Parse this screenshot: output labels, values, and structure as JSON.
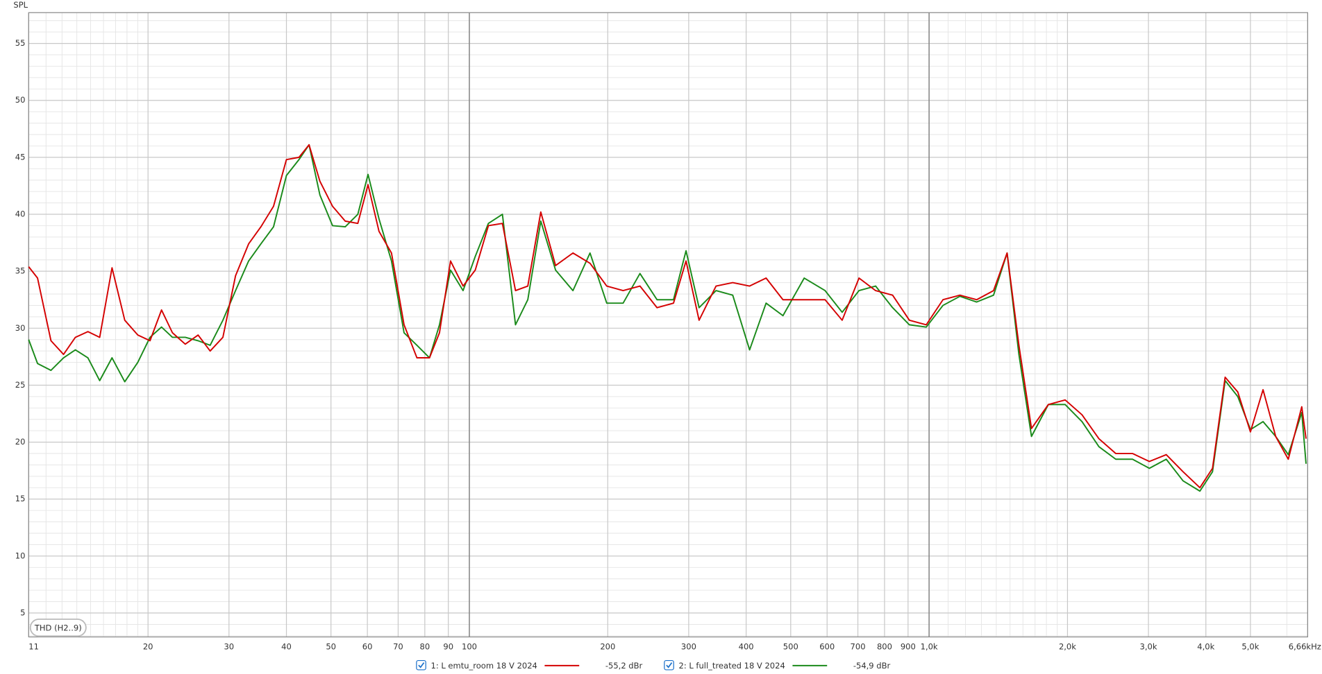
{
  "chart_data": {
    "type": "line",
    "y_label": "SPL",
    "button": "THD (H2..9)",
    "log_x": true,
    "grid": true,
    "xlim": [
      11,
      6660
    ],
    "ylim": [
      2.9,
      57.7
    ],
    "xticks": [
      11,
      20,
      30,
      40,
      50,
      60,
      70,
      80,
      90,
      100,
      200,
      300,
      400,
      500,
      600,
      700,
      800,
      900,
      {
        "value": 1000,
        "label": "1,0k"
      },
      {
        "value": 2000,
        "label": "2,0k"
      },
      {
        "value": 3000,
        "label": "3,0k"
      },
      {
        "value": 4000,
        "label": "4,0k"
      },
      {
        "value": 5000,
        "label": "5,0k"
      },
      {
        "value": 6660,
        "label": "6,66kHz"
      }
    ],
    "xticks_minor": [
      12,
      13,
      14,
      15,
      16,
      17,
      18,
      19,
      1100,
      1200,
      1300,
      1400,
      1500,
      1600,
      1700,
      1800,
      1900,
      6000
    ],
    "yticks": [
      5,
      10,
      15,
      20,
      25,
      30,
      35,
      40,
      45,
      50,
      55
    ],
    "yticks_minor": [
      3,
      4,
      6,
      7,
      8,
      9,
      11,
      12,
      13,
      14,
      16,
      17,
      18,
      19,
      21,
      22,
      23,
      24,
      26,
      27,
      28,
      29,
      31,
      32,
      33,
      34,
      36,
      37,
      38,
      39,
      41,
      42,
      43,
      44,
      46,
      47,
      48,
      49,
      51,
      52,
      53,
      54,
      56,
      57
    ],
    "x": [
      11,
      11.5,
      12.3,
      13.1,
      13.9,
      14.8,
      15.7,
      16.7,
      17.8,
      19.0,
      20.2,
      21.4,
      22.6,
      24.1,
      25.7,
      27.3,
      29.1,
      31.0,
      33.1,
      35.2,
      37.5,
      40.0,
      42.6,
      44.8,
      47.3,
      50.4,
      53.7,
      57.2,
      60.2,
      63.6,
      67.7,
      72.1,
      76.9,
      81.9,
      86.1,
      91.0,
      96.9,
      103,
      110,
      118,
      126,
      134,
      143,
      154,
      168,
      183,
      199,
      216,
      235,
      256,
      278,
      296,
      316,
      344,
      374,
      407,
      442,
      481,
      535,
      594,
      647,
      704,
      765,
      833,
      906,
      986,
      1072,
      1167,
      1269,
      1381,
      1478,
      1568,
      1670,
      1817,
      1977,
      2151,
      2341,
      2547,
      2770,
      3014,
      3280,
      3568,
      3882,
      4135,
      4405,
      4693,
      5000,
      5326,
      5674,
      6044,
      6466,
      6606
    ],
    "series": [
      {
        "name": "1: L emtu_room 18 V 2024",
        "offset": "-55,2 dBr",
        "color": "#d40000",
        "values": [
          35.4,
          34.4,
          28.9,
          27.7,
          29.2,
          29.7,
          29.2,
          35.3,
          30.7,
          29.4,
          28.9,
          31.6,
          29.6,
          28.6,
          29.4,
          28.0,
          29.2,
          34.6,
          37.4,
          38.9,
          40.7,
          44.8,
          45.0,
          46.1,
          42.9,
          40.7,
          39.4,
          39.2,
          42.6,
          38.5,
          36.6,
          30.3,
          27.4,
          27.4,
          29.6,
          35.9,
          33.7,
          35.1,
          39.0,
          39.2,
          33.3,
          33.7,
          40.2,
          35.5,
          36.6,
          35.7,
          33.7,
          33.3,
          33.7,
          31.8,
          32.2,
          35.9,
          30.7,
          33.7,
          34.0,
          33.7,
          34.4,
          32.5,
          32.5,
          32.5,
          30.7,
          34.4,
          33.3,
          32.9,
          30.7,
          30.3,
          32.5,
          32.9,
          32.5,
          33.3,
          36.6,
          28.5,
          21.2,
          23.3,
          23.7,
          22.4,
          20.3,
          19.0,
          19.0,
          18.3,
          18.9,
          17.4,
          16.0,
          17.7,
          25.7,
          24.4,
          20.9,
          24.6,
          20.5,
          18.5,
          23.1,
          20.3
        ]
      },
      {
        "name": "2: L full_treated 18 V 2024",
        "offset": "-54,9 dBr",
        "color": "#1a8a1a",
        "values": [
          29.0,
          26.9,
          26.3,
          27.4,
          28.1,
          27.4,
          25.4,
          27.4,
          25.3,
          27.0,
          29.2,
          30.1,
          29.2,
          29.2,
          28.9,
          28.5,
          30.7,
          33.3,
          35.9,
          37.4,
          38.9,
          43.4,
          44.8,
          46.1,
          41.7,
          39.0,
          38.9,
          40.0,
          43.5,
          39.6,
          35.9,
          29.6,
          28.5,
          27.4,
          30.3,
          35.1,
          33.3,
          36.3,
          39.2,
          40.0,
          30.3,
          32.5,
          39.4,
          35.1,
          33.3,
          36.6,
          32.2,
          32.2,
          34.8,
          32.5,
          32.5,
          36.8,
          31.8,
          33.3,
          32.9,
          28.1,
          32.2,
          31.1,
          34.4,
          33.3,
          31.4,
          33.3,
          33.7,
          31.8,
          30.3,
          30.1,
          32.0,
          32.8,
          32.3,
          32.9,
          36.6,
          27.7,
          20.5,
          23.3,
          23.3,
          21.8,
          19.6,
          18.5,
          18.5,
          17.7,
          18.5,
          16.6,
          15.7,
          17.4,
          25.4,
          24.0,
          21.1,
          21.8,
          20.5,
          18.9,
          22.6,
          18.1
        ]
      }
    ]
  }
}
